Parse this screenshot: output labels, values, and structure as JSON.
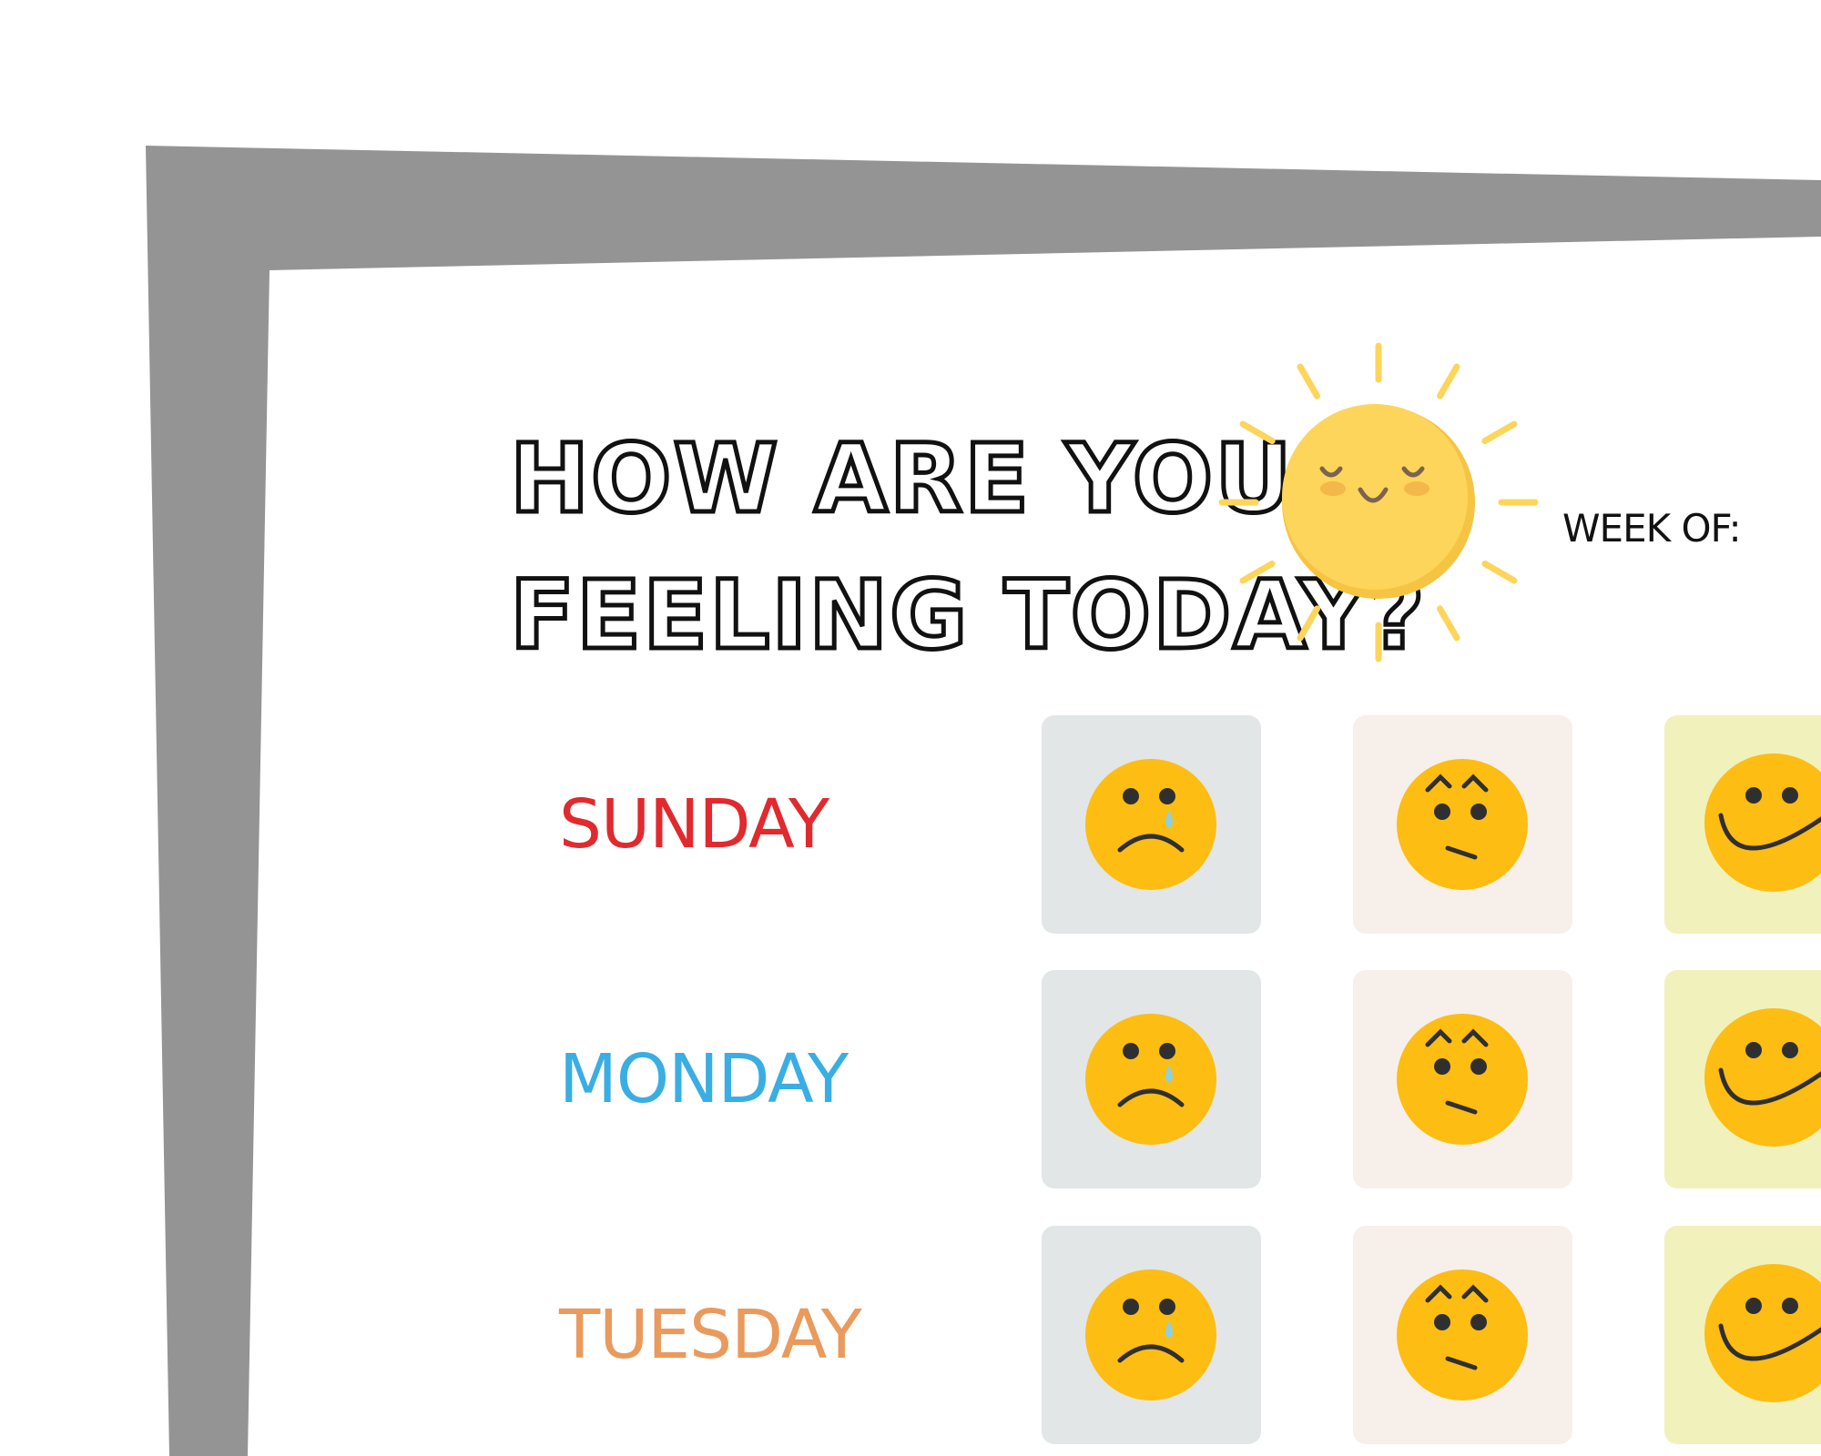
{
  "title": {
    "line1": "HOW ARE YOU",
    "line2": "FEELING TODAY?"
  },
  "week_of_label": "WEEK OF:",
  "icons": {
    "header": "sun-icon",
    "moods": [
      "sad-crying-face-icon",
      "worried-face-icon",
      "happy-face-icon"
    ]
  },
  "colors": {
    "frame": "#959495",
    "face": "#fdbd12",
    "features": "#2f2f2f",
    "tear": "#8fd0de",
    "sun": "#fdd55a",
    "tiles": [
      "#e2e6e7",
      "#f7efea",
      "#f1f1bb"
    ]
  },
  "days": [
    {
      "label": "SUNDAY",
      "color": "#e02a2e"
    },
    {
      "label": "MONDAY",
      "color": "#3aaee3"
    },
    {
      "label": "TUESDAY",
      "color": "#e99a5c"
    }
  ]
}
